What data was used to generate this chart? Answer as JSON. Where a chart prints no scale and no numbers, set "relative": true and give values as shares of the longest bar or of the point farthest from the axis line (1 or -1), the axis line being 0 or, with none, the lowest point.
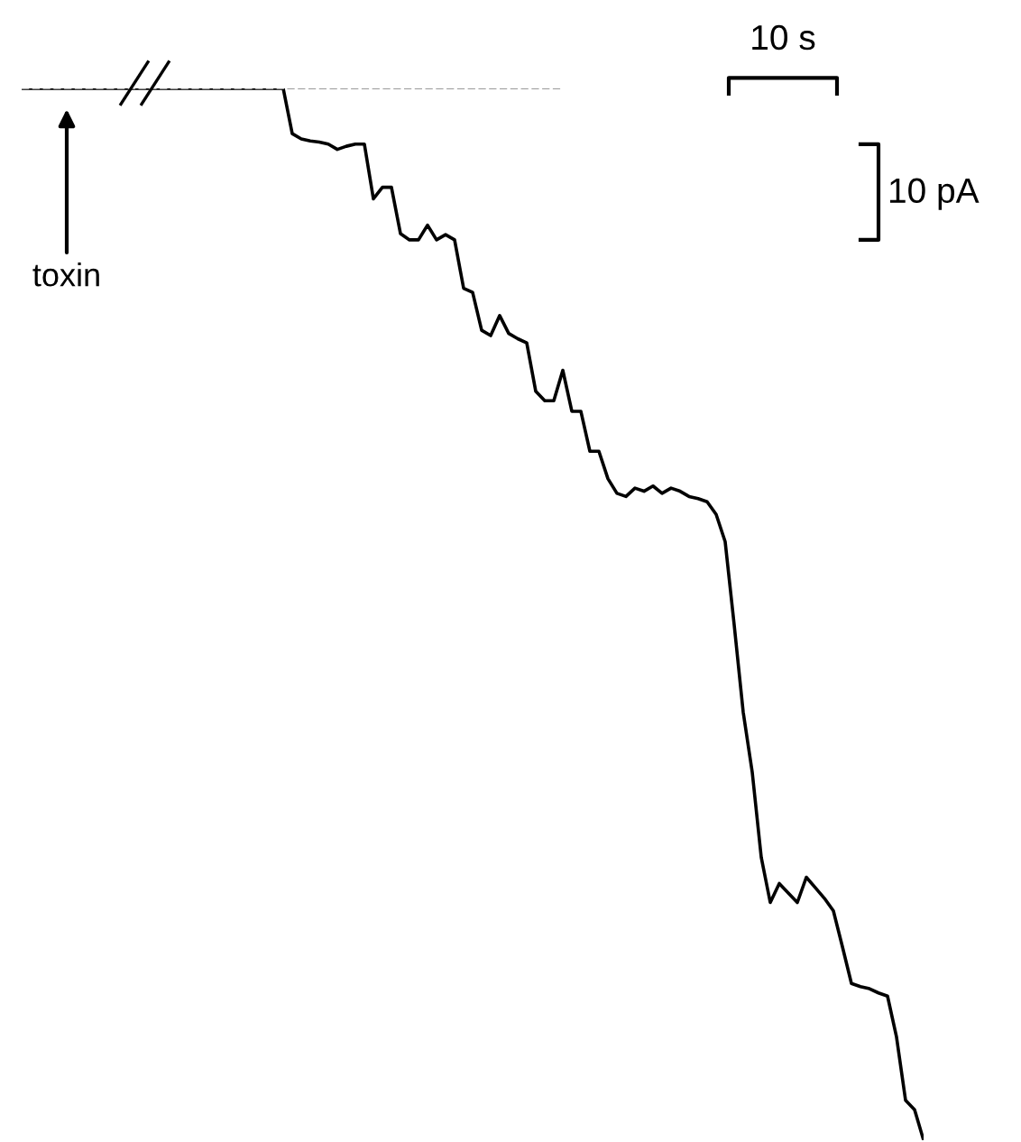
{
  "chart_data": {
    "type": "line",
    "relative": true,
    "marker": "none",
    "line_style": "solid",
    "categories": [
      null,
      null,
      null,
      null,
      null,
      null,
      null,
      null,
      null,
      null,
      null,
      null,
      null,
      null,
      null,
      null,
      null,
      null,
      null,
      null,
      null,
      null,
      null,
      null,
      null,
      null,
      null,
      null,
      null,
      null,
      null,
      null,
      null,
      null,
      null,
      null,
      null,
      null,
      null,
      null,
      null,
      null,
      null,
      null,
      null,
      null,
      null,
      null,
      null,
      null,
      null,
      null,
      null,
      null,
      null,
      null,
      null,
      null,
      null,
      null,
      null,
      null,
      null,
      null,
      null,
      null,
      null,
      null,
      null,
      null,
      null,
      null,
      null,
      null,
      null,
      null,
      null,
      null,
      null,
      null,
      null,
      null,
      null,
      null,
      null,
      null,
      null,
      null,
      null,
      null,
      null,
      null,
      null,
      null,
      null,
      null,
      null,
      null,
      null,
      null,
      null
    ],
    "series": [
      {
        "color": "#000000",
        "values": [
          1.0,
          1.0,
          1.0,
          1.0,
          1.0,
          1.0,
          1.0,
          1.0,
          1.0,
          1.0,
          1.0,
          1.0,
          1.0,
          1.0,
          1.0,
          1.0,
          1.0,
          1.0,
          1.0,
          1.0,
          1.0,
          1.0,
          1.0,
          1.0,
          1.0,
          1.0,
          1.0,
          1.0,
          1.0,
          1.0,
          0.957,
          0.952,
          0.95,
          0.949,
          0.947,
          0.942,
          0.945,
          0.947,
          0.947,
          0.895,
          0.906,
          0.906,
          0.862,
          0.856,
          0.856,
          0.87,
          0.856,
          0.861,
          0.856,
          0.81,
          0.806,
          0.77,
          0.765,
          0.784,
          0.767,
          0.762,
          0.758,
          0.712,
          0.703,
          0.703,
          0.732,
          0.693,
          0.693,
          0.655,
          0.655,
          0.629,
          0.615,
          0.612,
          0.62,
          0.617,
          0.622,
          0.615,
          0.62,
          0.617,
          0.612,
          0.61,
          0.607,
          0.595,
          0.569,
          0.49,
          0.407,
          0.35,
          0.269,
          0.226,
          0.244,
          0.235,
          0.226,
          0.25,
          0.24,
          0.23,
          0.218,
          0.184,
          0.149,
          0.146,
          0.144,
          0.14,
          0.137,
          0.098,
          0.038,
          0.029,
          0.0
        ]
      }
    ],
    "ref_lines": [
      {
        "axis": "y",
        "value": 1.0,
        "color": "#999999",
        "line_style": "dashed"
      }
    ],
    "annotations": [
      "toxin",
      "10 s",
      "10 pA"
    ]
  }
}
